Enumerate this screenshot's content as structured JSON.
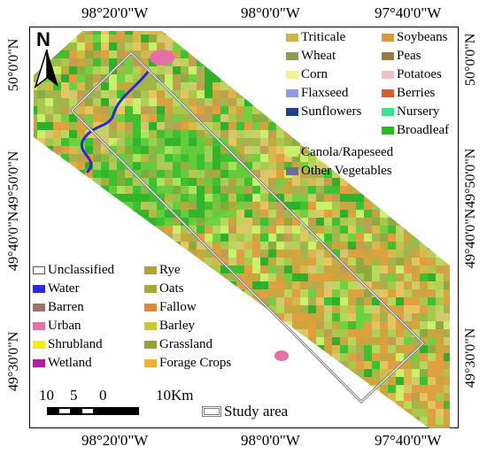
{
  "top_longitudes": [
    "98°20'0\"W",
    "98°0'0\"W",
    "97°40'0\"W"
  ],
  "bottom_longitudes": [
    "98°20'0\"W",
    "98°0'0\"W",
    "97°40'0\"W"
  ],
  "left_latitudes": [
    "50°0'0\"N",
    "49°50'0\"N",
    "49°40'0\"N",
    "49°30'0\"N"
  ],
  "right_latitudes": [
    "50°0'0\"N",
    "49°50'0\"N",
    "49°40'0\"N",
    "49°30'0\"N"
  ],
  "north_arrow": {
    "label": "N"
  },
  "scale_bar": {
    "labels": [
      "10",
      "5",
      "0",
      "10Km"
    ]
  },
  "study_area": {
    "label": "Study area"
  },
  "legend_top": {
    "col1": [
      {
        "label": "Triticale",
        "color": "#c8b748"
      },
      {
        "label": "Wheat",
        "color": "#8f9b4d"
      },
      {
        "label": "Corn",
        "color": "#f5f09a"
      },
      {
        "label": "Flaxseed",
        "color": "#8f9be6"
      },
      {
        "label": "Sunflowers",
        "color": "#1e3f8c"
      }
    ],
    "col2": [
      {
        "label": "Soybeans",
        "color": "#d89a3c"
      },
      {
        "label": "Peas",
        "color": "#9c7a3f"
      },
      {
        "label": "Potatoes",
        "color": "#f2c2c6"
      },
      {
        "label": "Berries",
        "color": "#e35a2a"
      },
      {
        "label": "Nursery",
        "color": "#3fe08f"
      },
      {
        "label": "Broadleaf",
        "color": "#1fbf1f"
      }
    ],
    "wide": [
      {
        "label": "Canola/Rapeseed",
        "color": "#c9f06b"
      },
      {
        "label": "Other Vegetables",
        "color": "#6b6b9c"
      }
    ]
  },
  "legend_bottom": {
    "col1": [
      {
        "label": "Unclassified",
        "color": "#ffffff"
      },
      {
        "label": "Water",
        "color": "#2b2bd6"
      },
      {
        "label": "Barren",
        "color": "#a0726a"
      },
      {
        "label": "Urban",
        "color": "#e66fa8"
      },
      {
        "label": "Shrubland",
        "color": "#f2f000"
      },
      {
        "label": "Wetland",
        "color": "#b01fa0"
      }
    ],
    "col2": [
      {
        "label": "Rye",
        "color": "#b8a035"
      },
      {
        "label": "Oats",
        "color": "#a8a83a"
      },
      {
        "label": "Fallow",
        "color": "#e0892e"
      },
      {
        "label": "Barley",
        "color": "#c8c838"
      },
      {
        "label": "Grassland",
        "color": "#9aa038"
      },
      {
        "label": "Forage Crops",
        "color": "#f0b030"
      }
    ]
  },
  "map_palette": [
    "#c9f06b",
    "#b6d85c",
    "#a8c84c",
    "#d8b84a",
    "#c9a63e",
    "#e0a040",
    "#9fb848",
    "#8faa40",
    "#d2c870",
    "#b8cc58",
    "#6fd040",
    "#3fc030",
    "#2fb02a",
    "#e6c460",
    "#c0a050",
    "#a8b050"
  ]
}
